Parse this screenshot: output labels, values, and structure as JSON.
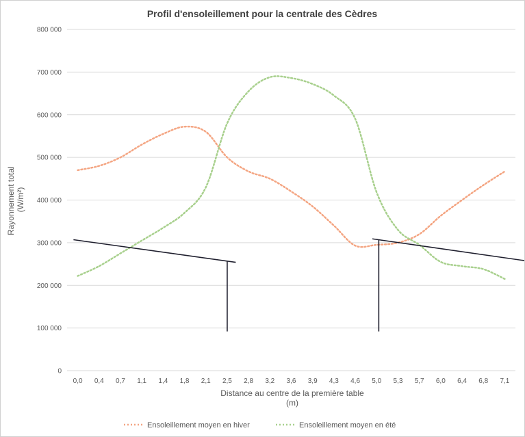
{
  "chart_data": {
    "type": "line",
    "title": "Profil d'ensoleillement pour la centrale des Cèdres",
    "xlabel_line1": "Distance au centre de la première table",
    "xlabel_line2": "(m)",
    "ylabel_line1": "Rayonnement total",
    "ylabel_line2": "(W/m²)",
    "ylim": [
      0,
      800000
    ],
    "yticks": [
      0,
      100000,
      200000,
      300000,
      400000,
      500000,
      600000,
      700000,
      800000
    ],
    "ytick_labels": [
      "0",
      "100 000",
      "200 000",
      "300 000",
      "400 000",
      "500 000",
      "600 000",
      "700 000",
      "800 000"
    ],
    "categories": [
      "0,0",
      "0,4",
      "0,7",
      "1,1",
      "1,4",
      "1,8",
      "2,1",
      "2,5",
      "2,8",
      "3,2",
      "3,6",
      "3,9",
      "4,3",
      "4,6",
      "5,0",
      "5,3",
      "5,7",
      "6,0",
      "6,4",
      "6,8",
      "7,1"
    ],
    "grid": true,
    "legend_position": "bottom",
    "series": [
      {
        "name": "Ensoleillement moyen en hiver",
        "color": "#f4a582",
        "style": "dotted",
        "values": [
          470000,
          480000,
          500000,
          530000,
          555000,
          572000,
          560000,
          500000,
          467000,
          450000,
          420000,
          385000,
          340000,
          293000,
          295000,
          300000,
          320000,
          363000,
          400000,
          435000,
          467000
        ]
      },
      {
        "name": "Ensoleillement moyen en été",
        "color": "#a8d08d",
        "style": "dotted",
        "values": [
          222000,
          245000,
          275000,
          305000,
          335000,
          370000,
          430000,
          580000,
          655000,
          688000,
          686000,
          672000,
          645000,
          590000,
          418000,
          330000,
          295000,
          255000,
          245000,
          238000,
          215000
        ]
      }
    ],
    "annotations": [
      {
        "name": "panel-left",
        "color": "#1f1f2e",
        "slope_from": {
          "x_cat": -0.2,
          "y": 307000
        },
        "slope_to": {
          "x_cat": 7.4,
          "y": 254000
        },
        "post_top": {
          "x_cat": 7.0,
          "y": 257000
        },
        "post_bottom": {
          "x_cat": 7.0,
          "y": 92000
        }
      },
      {
        "name": "panel-right",
        "color": "#1f1f2e",
        "slope_from": {
          "x_cat": 13.8,
          "y": 309000
        },
        "slope_to": {
          "x_cat": 21.2,
          "y": 256000
        },
        "post_top": {
          "x_cat": 14.1,
          "y": 307000
        },
        "post_bottom": {
          "x_cat": 14.1,
          "y": 92000
        }
      }
    ]
  }
}
